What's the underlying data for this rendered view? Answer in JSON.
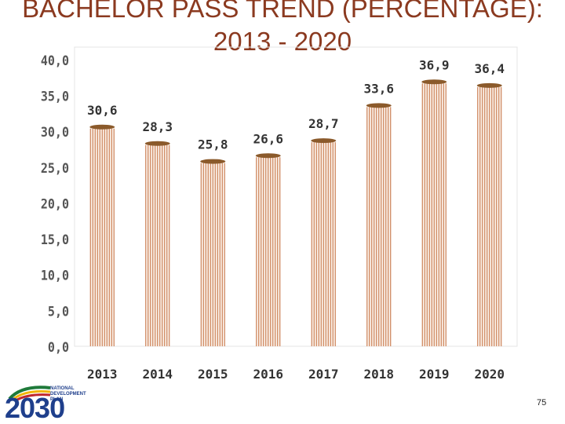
{
  "title": {
    "line1": "BACHELOR PASS TREND (PERCENTAGE):",
    "line2": "2013 - 2020"
  },
  "chart_data": {
    "type": "bar",
    "categories": [
      "2013",
      "2014",
      "2015",
      "2016",
      "2017",
      "2018",
      "2019",
      "2020"
    ],
    "values": [
      30.6,
      28.3,
      25.8,
      26.6,
      28.7,
      33.6,
      36.9,
      36.4
    ],
    "data_labels": [
      "30,6",
      "28,3",
      "25,8",
      "26,6",
      "28,7",
      "33,6",
      "36,9",
      "36,4"
    ],
    "y_ticks": [
      "0,0",
      "5,0",
      "10,0",
      "15,0",
      "20,0",
      "25,0",
      "30,0",
      "35,0",
      "40,0"
    ],
    "ylim": [
      0,
      40
    ],
    "grid": false,
    "colors": {
      "bar_stripe": "#c8784a",
      "bar_cap": "#8b5a2b",
      "title": "#8b3a20"
    }
  },
  "logo": {
    "number": "2030",
    "lines": [
      "NATIONAL",
      "DEVELOPMENT",
      "PLAN"
    ]
  },
  "page_number": "75"
}
